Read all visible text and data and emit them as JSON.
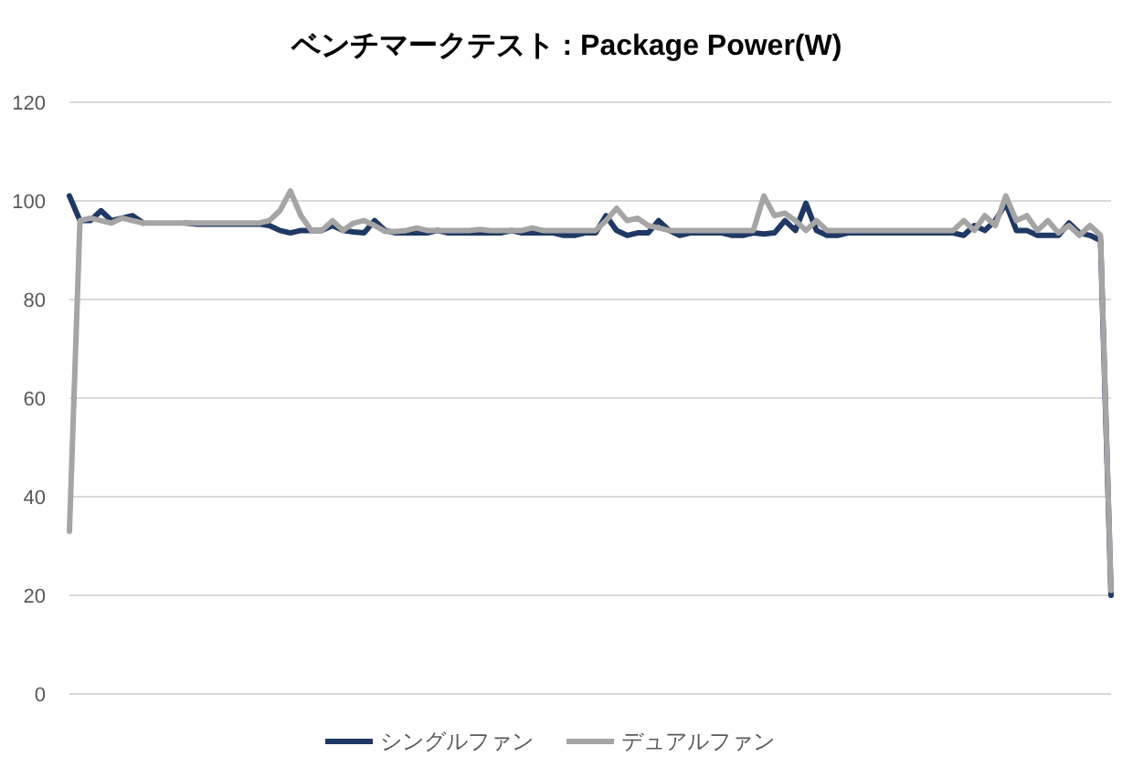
{
  "chart_data": {
    "type": "line",
    "title": "ベンチマークテスト : Package Power(W)",
    "categories": [
      null,
      null,
      null,
      null,
      null,
      null,
      null,
      null,
      null,
      null,
      null,
      null,
      null,
      null,
      null,
      null,
      null,
      null,
      null,
      null,
      null,
      null,
      null,
      null,
      null,
      null,
      null,
      null,
      null,
      null,
      null,
      null,
      null,
      null,
      null,
      null,
      null,
      null,
      null,
      null,
      null,
      null,
      null,
      null,
      null,
      null,
      null,
      null,
      null,
      null,
      null,
      null,
      null,
      null,
      null,
      null,
      null,
      null,
      null,
      null,
      null,
      null,
      null,
      null,
      null,
      null,
      null,
      null,
      null,
      null,
      null,
      null,
      null,
      null,
      null,
      null,
      null,
      null,
      null,
      null,
      null,
      null,
      null,
      null,
      null,
      null,
      null,
      null,
      null,
      null,
      null,
      null,
      null,
      null,
      null,
      null,
      null,
      null,
      null,
      null
    ],
    "series": [
      {
        "name": "シングルファン",
        "color": "#203864",
        "values": [
          101,
          96,
          96,
          98,
          96,
          96.5,
          97,
          95.5,
          null,
          null,
          null,
          95.5,
          95.3,
          95.3,
          95.3,
          95.3,
          95.3,
          95.3,
          95.3,
          95,
          94,
          93.5,
          94,
          94,
          94,
          95,
          94,
          93.7,
          93.5,
          96,
          94,
          93.5,
          93.5,
          93.5,
          93.5,
          94,
          93.5,
          93.5,
          93.5,
          93.5,
          93.5,
          93.5,
          94,
          93.5,
          93.5,
          93.5,
          93.5,
          93,
          93,
          93.5,
          93.5,
          97,
          94,
          93,
          93.5,
          93.5,
          96,
          94,
          93,
          93.5,
          93.5,
          93.5,
          93.5,
          93,
          93,
          93.5,
          93.3,
          93.5,
          96,
          94,
          99.5,
          94,
          93,
          93,
          93.5,
          93.5,
          93.5,
          93.5,
          93.5,
          93.5,
          93.5,
          93.5,
          93.5,
          93.5,
          93.5,
          93,
          95,
          94,
          96,
          99.5,
          94,
          94,
          93,
          93,
          93,
          95.5,
          93.5,
          93,
          92,
          20
        ]
      },
      {
        "name": "デュアルファン",
        "color": "#a5a5a5",
        "values": [
          33,
          96,
          96.5,
          96,
          95.5,
          96.5,
          96,
          95.5,
          95.5,
          95.5,
          95.5,
          95.5,
          95.5,
          95.5,
          95.5,
          95.5,
          95.5,
          95.5,
          95.5,
          96,
          98,
          102,
          97,
          94,
          94,
          96,
          94,
          95.5,
          96,
          95,
          93.8,
          93.8,
          94,
          94.5,
          94,
          94,
          94,
          94,
          94,
          94.2,
          94,
          94,
          94,
          94,
          94.5,
          94,
          94,
          94,
          94,
          94,
          94,
          96,
          98.5,
          96,
          96.5,
          95,
          94.5,
          94,
          94,
          94,
          94,
          94,
          94,
          94,
          94,
          94,
          101,
          97,
          97.5,
          96,
          94,
          96,
          94,
          94,
          94,
          94,
          94,
          94,
          94,
          94,
          94,
          94,
          94,
          94,
          94,
          96,
          94,
          97,
          95,
          101,
          96,
          97,
          94,
          96,
          93.5,
          95,
          93,
          95,
          93,
          21
        ]
      }
    ],
    "ylim": [
      0,
      120
    ],
    "yticks": [
      0,
      20,
      40,
      60,
      80,
      100,
      120
    ],
    "grid": "y",
    "legend": "bottom",
    "marker": "none",
    "line_style": "solid"
  }
}
